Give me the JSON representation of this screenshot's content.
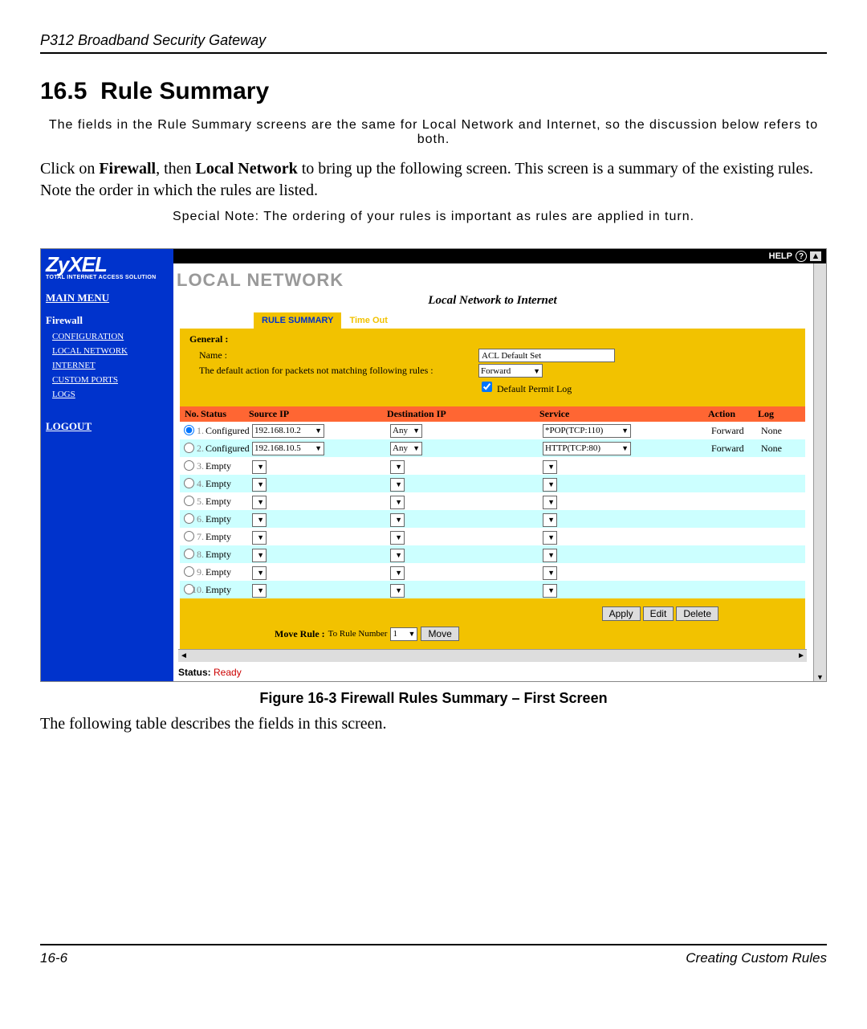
{
  "doc": {
    "header": "P312  Broadband Security Gateway",
    "section_number": "16.5",
    "section_title": "Rule Summary",
    "note1": "The fields in the Rule Summary screens are the same for Local Network and Internet, so the discussion below refers to both.",
    "para1_a": "Click on ",
    "para1_b": "Firewall",
    "para1_c": ", then ",
    "para1_d": "Local Network",
    "para1_e": " to bring up the following screen. This screen is a summary of the existing rules. Note the order in which the rules are listed.",
    "note2": "Special Note: The ordering of your rules is important as rules are applied in turn.",
    "caption": "Figure 16-3      Firewall Rules Summary – First Screen",
    "after_caption": "The following table describes the fields in this screen.",
    "footer_left": "16-6",
    "footer_right": "Creating Custom Rules"
  },
  "ui": {
    "logo": "ZyXEL",
    "logo_sub": "TOTAL INTERNET ACCESS SOLUTION",
    "help": "HELP",
    "menu": {
      "main": "MAIN MENU",
      "firewall": "Firewall",
      "items": [
        "CONFIGURATION",
        "LOCAL NETWORK",
        "INTERNET",
        "CUSTOM PORTS",
        "LOGS"
      ],
      "logout": "LOGOUT"
    },
    "title": "LOCAL NETWORK",
    "subtitle": "Local Network to Internet",
    "tabs": {
      "active": "RULE SUMMARY",
      "inactive": "Time Out"
    },
    "general": {
      "heading": "General :",
      "name_label": "Name :",
      "name_value": "ACL Default Set",
      "action_label": "The default action for packets not matching following rules :",
      "action_value": "Forward",
      "log_checkbox": "Default Permit Log"
    },
    "columns": {
      "no": "No.",
      "status": "Status",
      "src": "Source IP",
      "dst": "Destination IP",
      "svc": "Service",
      "act": "Action",
      "log": "Log"
    },
    "rows": [
      {
        "n": "1.",
        "status": "Configured",
        "src": "192.168.10.2",
        "dst": "Any",
        "svc": "*POP(TCP:110)",
        "act": "Forward",
        "log": "None",
        "sel": true
      },
      {
        "n": "2.",
        "status": "Configured",
        "src": "192.168.10.5",
        "dst": "Any",
        "svc": "HTTP(TCP:80)",
        "act": "Forward",
        "log": "None",
        "sel": false
      },
      {
        "n": "3.",
        "status": "Empty",
        "src": "",
        "dst": "",
        "svc": "",
        "act": "",
        "log": "",
        "sel": false
      },
      {
        "n": "4.",
        "status": "Empty",
        "src": "",
        "dst": "",
        "svc": "",
        "act": "",
        "log": "",
        "sel": false
      },
      {
        "n": "5.",
        "status": "Empty",
        "src": "",
        "dst": "",
        "svc": "",
        "act": "",
        "log": "",
        "sel": false
      },
      {
        "n": "6.",
        "status": "Empty",
        "src": "",
        "dst": "",
        "svc": "",
        "act": "",
        "log": "",
        "sel": false
      },
      {
        "n": "7.",
        "status": "Empty",
        "src": "",
        "dst": "",
        "svc": "",
        "act": "",
        "log": "",
        "sel": false
      },
      {
        "n": "8.",
        "status": "Empty",
        "src": "",
        "dst": "",
        "svc": "",
        "act": "",
        "log": "",
        "sel": false
      },
      {
        "n": "9.",
        "status": "Empty",
        "src": "",
        "dst": "",
        "svc": "",
        "act": "",
        "log": "",
        "sel": false
      },
      {
        "n": "10.",
        "status": "Empty",
        "src": "",
        "dst": "",
        "svc": "",
        "act": "",
        "log": "",
        "sel": false
      }
    ],
    "buttons": {
      "apply": "Apply",
      "edit": "Edit",
      "delete": "Delete",
      "move": "Move"
    },
    "move_label_a": "Move Rule :",
    "move_label_b": "To Rule Number",
    "move_value": "1",
    "status_label": "Status:",
    "status_value": "Ready"
  },
  "colors": {
    "blue": "#0033cc",
    "yellow": "#f2c200",
    "orange": "#ff6633",
    "cyan": "#ccffff"
  }
}
